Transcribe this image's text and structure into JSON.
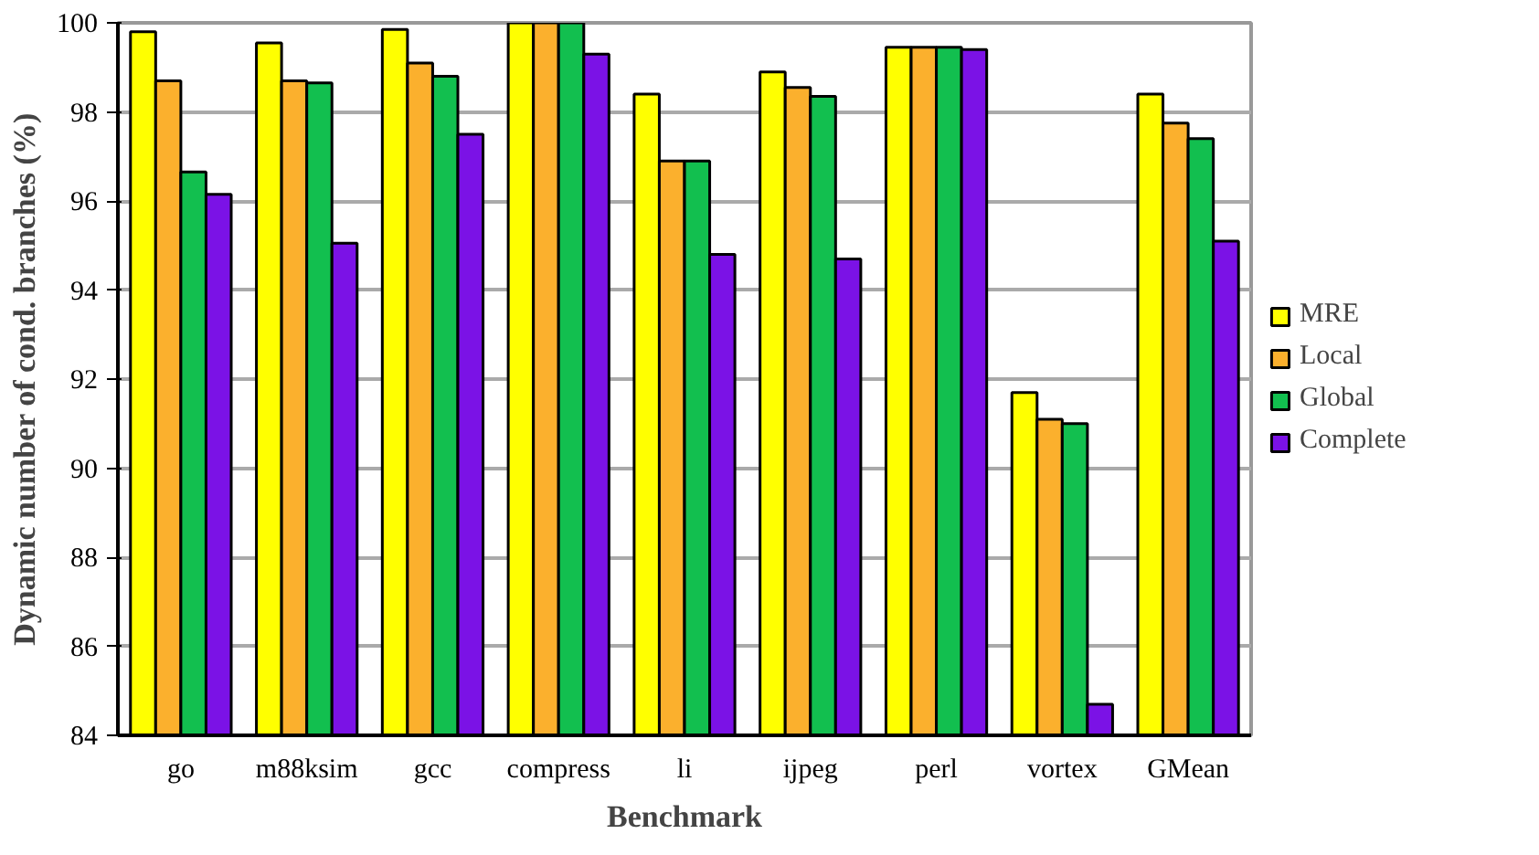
{
  "chart_data": {
    "type": "bar",
    "xlabel": "Benchmark",
    "ylabel": "Dynamic number of cond. branches (%)",
    "categories": [
      "go",
      "m88ksim",
      "gcc",
      "compress",
      "li",
      "ijpeg",
      "perl",
      "vortex",
      "GMean"
    ],
    "series": [
      {
        "name": "MRE",
        "color": "#ffff00",
        "values": [
          99.8,
          99.55,
          99.85,
          100,
          98.4,
          98.9,
          99.45,
          91.7,
          98.4
        ]
      },
      {
        "name": "Local",
        "color": "#fbb02d",
        "values": [
          98.7,
          98.7,
          99.1,
          100,
          96.9,
          98.55,
          99.45,
          91.1,
          97.75
        ]
      },
      {
        "name": "Global",
        "color": "#12bf4f",
        "values": [
          96.65,
          98.65,
          98.8,
          100,
          96.9,
          98.35,
          99.45,
          91.0,
          97.4
        ]
      },
      {
        "name": "Complete",
        "color": "#7b12e6",
        "values": [
          96.15,
          95.05,
          97.5,
          99.3,
          94.8,
          94.7,
          99.4,
          84.7,
          95.1
        ]
      }
    ],
    "ylim": [
      84,
      100
    ],
    "yticks": [
      84,
      86,
      88,
      90,
      92,
      94,
      96,
      98,
      100
    ],
    "grid": "y",
    "legend": "right"
  }
}
